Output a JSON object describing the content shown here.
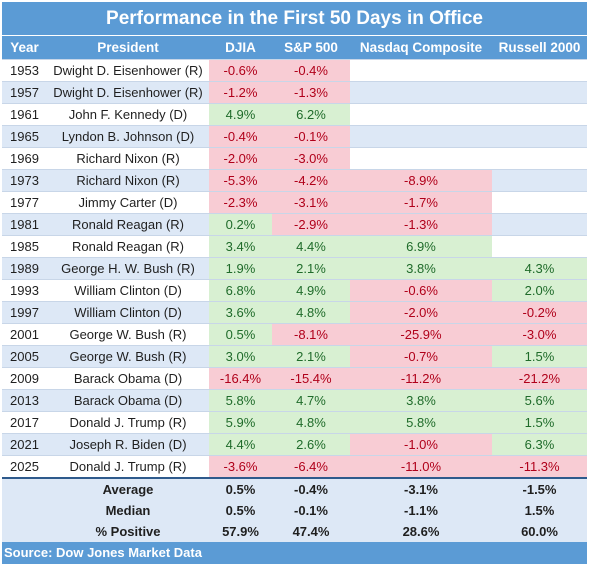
{
  "title": "Performance in the First 50 Days in Office",
  "source": "Source: Dow Jones Market Data",
  "colors": {
    "header": "#5b9bd5",
    "positive": "#d8f0d2",
    "negative": "#f8ccd4",
    "band": "#dde8f6"
  },
  "chart_data": {
    "type": "table",
    "title": "Performance in the First 50 Days in Office",
    "columns": [
      "Year",
      "President",
      "DJIA",
      "S&P 500",
      "Nasdaq Composite",
      "Russell 2000"
    ],
    "rows": [
      [
        "1953",
        "Dwight D. Eisenhower (R)",
        "-0.6%",
        "-0.4%",
        "",
        ""
      ],
      [
        "1957",
        "Dwight D. Eisenhower (R)",
        "-1.2%",
        "-1.3%",
        "",
        ""
      ],
      [
        "1961",
        "John F. Kennedy (D)",
        "4.9%",
        "6.2%",
        "",
        ""
      ],
      [
        "1965",
        "Lyndon B. Johnson (D)",
        "-0.4%",
        "-0.1%",
        "",
        ""
      ],
      [
        "1969",
        "Richard Nixon (R)",
        "-2.0%",
        "-3.0%",
        "",
        ""
      ],
      [
        "1973",
        "Richard Nixon (R)",
        "-5.3%",
        "-4.2%",
        "-8.9%",
        ""
      ],
      [
        "1977",
        "Jimmy Carter (D)",
        "-2.3%",
        "-3.1%",
        "-1.7%",
        ""
      ],
      [
        "1981",
        "Ronald Reagan (R)",
        "0.2%",
        "-2.9%",
        "-1.3%",
        ""
      ],
      [
        "1985",
        "Ronald Reagan (R)",
        "3.4%",
        "4.4%",
        "6.9%",
        ""
      ],
      [
        "1989",
        "George H. W. Bush (R)",
        "1.9%",
        "2.1%",
        "3.8%",
        "4.3%"
      ],
      [
        "1993",
        "William Clinton (D)",
        "6.8%",
        "4.9%",
        "-0.6%",
        "2.0%"
      ],
      [
        "1997",
        "William Clinton (D)",
        "3.6%",
        "4.8%",
        "-2.0%",
        "-0.2%"
      ],
      [
        "2001",
        "George W. Bush (R)",
        "0.5%",
        "-8.1%",
        "-25.9%",
        "-3.0%"
      ],
      [
        "2005",
        "George W. Bush (R)",
        "3.0%",
        "2.1%",
        "-0.7%",
        "1.5%"
      ],
      [
        "2009",
        "Barack Obama (D)",
        "-16.4%",
        "-15.4%",
        "-11.2%",
        "-21.2%"
      ],
      [
        "2013",
        "Barack Obama (D)",
        "5.8%",
        "4.7%",
        "3.8%",
        "5.6%"
      ],
      [
        "2017",
        "Donald J. Trump (R)",
        "5.9%",
        "4.8%",
        "5.8%",
        "1.5%"
      ],
      [
        "2021",
        "Joseph R. Biden (D)",
        "4.4%",
        "2.6%",
        "-1.0%",
        "6.3%"
      ],
      [
        "2025",
        "Donald J. Trump (R)",
        "-3.6%",
        "-6.4%",
        "-11.0%",
        "-11.3%"
      ]
    ],
    "summary": [
      [
        "",
        "Average",
        "0.5%",
        "-0.4%",
        "-3.1%",
        "-1.5%"
      ],
      [
        "",
        "Median",
        "0.5%",
        "-0.1%",
        "-1.1%",
        "1.5%"
      ],
      [
        "",
        "% Positive",
        "57.9%",
        "47.4%",
        "28.6%",
        "60.0%"
      ]
    ]
  }
}
